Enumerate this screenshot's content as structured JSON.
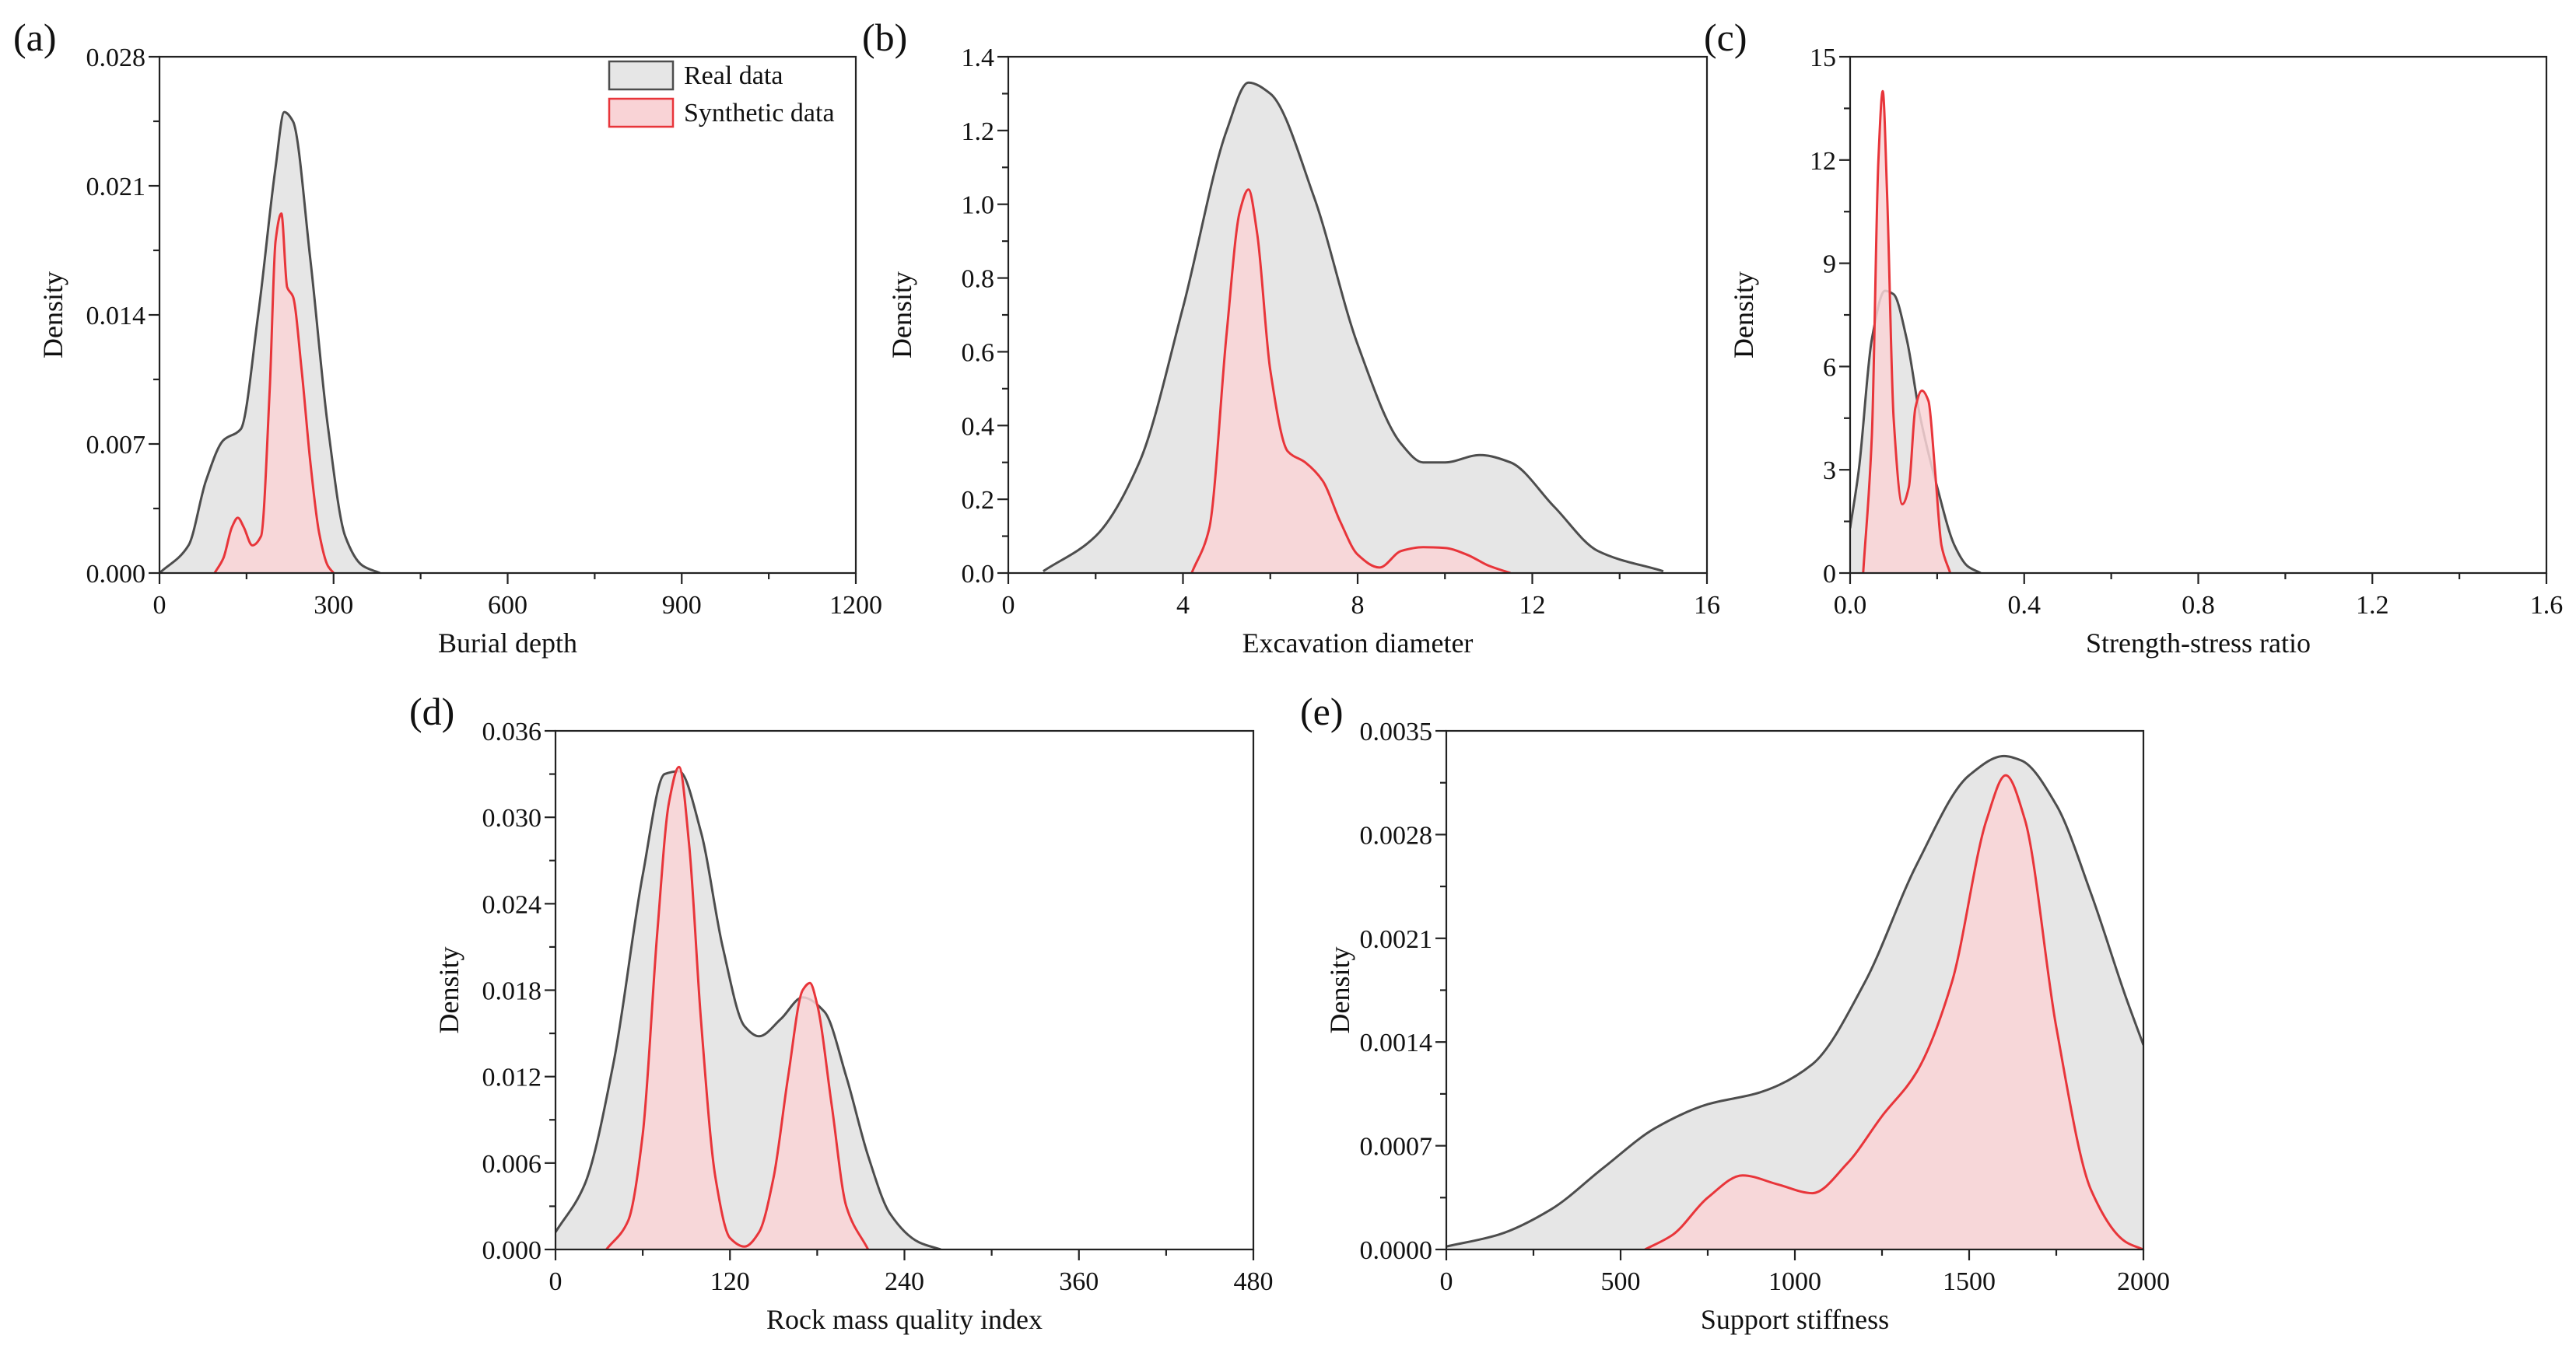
{
  "figure": {
    "legend": {
      "entries": [
        {
          "label": "Real data",
          "stroke": "#4d4d4d",
          "fill": "#e6e6e6"
        },
        {
          "label": "Synthetic data",
          "stroke": "#e8353a",
          "fill": "#f9d3d6"
        }
      ]
    }
  },
  "chart_data": [
    {
      "panel": "(a)",
      "type": "area",
      "xlabel": "Burial depth",
      "ylabel": "Density",
      "xlim": [
        0,
        1200
      ],
      "ylim": [
        0,
        0.028
      ],
      "xticks": [
        "0",
        "300",
        "600",
        "900",
        "1200"
      ],
      "yticks": [
        "0.000",
        "0.007",
        "0.014",
        "0.021",
        "0.028"
      ],
      "series": [
        {
          "name": "Real data",
          "x": [
            0,
            50,
            80,
            110,
            140,
            170,
            200,
            215,
            230,
            260,
            290,
            320,
            350,
            380
          ],
          "values": [
            0.0,
            0.0015,
            0.005,
            0.0072,
            0.0078,
            0.014,
            0.022,
            0.025,
            0.0245,
            0.017,
            0.008,
            0.002,
            0.0004,
            0.0
          ]
        },
        {
          "name": "Synthetic data",
          "x": [
            95,
            110,
            125,
            135,
            145,
            160,
            175,
            190,
            200,
            210,
            220,
            230,
            245,
            260,
            275,
            290,
            300
          ],
          "values": [
            0.0,
            0.0008,
            0.0025,
            0.003,
            0.0025,
            0.0015,
            0.002,
            0.01,
            0.018,
            0.0195,
            0.0155,
            0.015,
            0.011,
            0.006,
            0.0022,
            0.0004,
            0.0
          ]
        }
      ]
    },
    {
      "panel": "(b)",
      "type": "area",
      "xlabel": "Excavation diameter",
      "ylabel": "Density",
      "xlim": [
        0,
        16
      ],
      "ylim": [
        0,
        1.4
      ],
      "xticks": [
        "0",
        "4",
        "8",
        "12",
        "16"
      ],
      "yticks": [
        "0.0",
        "0.2",
        "0.4",
        "0.6",
        "0.8",
        "1.0",
        "1.2",
        "1.4"
      ],
      "series": [
        {
          "name": "Real data",
          "x": [
            0.8,
            2,
            3,
            4,
            5,
            5.5,
            6,
            7,
            8,
            9,
            9.5,
            10,
            10.8,
            11.5,
            12.5,
            13.5,
            15
          ],
          "values": [
            0.005,
            0.1,
            0.3,
            0.72,
            1.2,
            1.33,
            1.3,
            1.02,
            0.62,
            0.35,
            0.3,
            0.3,
            0.32,
            0.3,
            0.18,
            0.06,
            0.005
          ]
        },
        {
          "name": "Synthetic data",
          "x": [
            4.2,
            4.6,
            5.0,
            5.3,
            5.5,
            5.7,
            6.0,
            6.4,
            6.8,
            7.2,
            7.6,
            8.0,
            8.5,
            9.0,
            9.5,
            10.0,
            10.5,
            11.0,
            11.5
          ],
          "values": [
            0.0,
            0.12,
            0.65,
            0.98,
            1.04,
            0.92,
            0.55,
            0.33,
            0.3,
            0.25,
            0.14,
            0.05,
            0.015,
            0.06,
            0.07,
            0.068,
            0.05,
            0.02,
            0.0
          ]
        }
      ]
    },
    {
      "panel": "(c)",
      "type": "area",
      "xlabel": "Strength-stress ratio",
      "ylabel": "Density",
      "xlim": [
        0,
        1.6
      ],
      "ylim": [
        0,
        15
      ],
      "xticks": [
        "0.0",
        "0.4",
        "0.8",
        "1.2",
        "1.6"
      ],
      "yticks": [
        "0",
        "3",
        "6",
        "9",
        "12",
        "15"
      ],
      "series": [
        {
          "name": "Real data",
          "x": [
            0.0,
            0.02,
            0.05,
            0.08,
            0.1,
            0.13,
            0.16,
            0.2,
            0.24,
            0.27,
            0.3
          ],
          "values": [
            1.3,
            3.0,
            6.8,
            8.2,
            8.1,
            6.8,
            4.6,
            2.5,
            0.8,
            0.2,
            0.0
          ]
        },
        {
          "name": "Synthetic data",
          "x": [
            0.03,
            0.05,
            0.065,
            0.075,
            0.085,
            0.1,
            0.12,
            0.135,
            0.15,
            0.165,
            0.18,
            0.195,
            0.21,
            0.23
          ],
          "values": [
            0.0,
            4.0,
            12.0,
            14.0,
            11.0,
            4.5,
            2.0,
            2.5,
            4.8,
            5.3,
            5.0,
            3.0,
            0.8,
            0.0
          ]
        }
      ]
    },
    {
      "panel": "(d)",
      "type": "area",
      "xlabel": "Rock mass quality index",
      "ylabel": "Density",
      "xlim": [
        0,
        480
      ],
      "ylim": [
        0,
        0.036
      ],
      "xticks": [
        "0",
        "120",
        "240",
        "360",
        "480"
      ],
      "yticks": [
        "0.000",
        "0.006",
        "0.012",
        "0.018",
        "0.024",
        "0.030",
        "0.036"
      ],
      "series": [
        {
          "name": "Real data",
          "x": [
            0,
            20,
            40,
            60,
            75,
            85,
            100,
            115,
            130,
            140,
            155,
            170,
            185,
            200,
            215,
            230,
            250,
            265
          ],
          "values": [
            0.0012,
            0.0045,
            0.013,
            0.026,
            0.033,
            0.0332,
            0.029,
            0.021,
            0.0155,
            0.0148,
            0.016,
            0.0175,
            0.0165,
            0.012,
            0.0065,
            0.0025,
            0.0005,
            0.0
          ]
        },
        {
          "name": "Synthetic data",
          "x": [
            35,
            50,
            60,
            70,
            78,
            85,
            92,
            100,
            110,
            120,
            130,
            140,
            150,
            160,
            170,
            175,
            180,
            190,
            200,
            215
          ],
          "values": [
            0.0,
            0.002,
            0.008,
            0.022,
            0.031,
            0.0335,
            0.028,
            0.016,
            0.005,
            0.0008,
            0.0002,
            0.0012,
            0.005,
            0.012,
            0.018,
            0.0185,
            0.017,
            0.01,
            0.003,
            0.0
          ]
        }
      ]
    },
    {
      "panel": "(e)",
      "type": "area",
      "xlabel": "Support stiffness",
      "ylabel": "Density",
      "xlim": [
        0,
        2000
      ],
      "ylim": [
        0,
        0.0035
      ],
      "xticks": [
        "0",
        "500",
        "1000",
        "1500",
        "2000"
      ],
      "yticks": [
        "0.0000",
        "0.0007",
        "0.0014",
        "0.0021",
        "0.0028",
        "0.0035"
      ],
      "series": [
        {
          "name": "Real data",
          "x": [
            0,
            150,
            300,
            450,
            600,
            750,
            900,
            1050,
            1200,
            1350,
            1500,
            1600,
            1650,
            1750,
            1850,
            1950,
            2000
          ],
          "values": [
            2e-05,
            0.0001,
            0.00027,
            0.00055,
            0.00082,
            0.00098,
            0.00106,
            0.00125,
            0.0018,
            0.0026,
            0.0032,
            0.00333,
            0.0033,
            0.003,
            0.0024,
            0.0017,
            0.00138
          ]
        },
        {
          "name": "Synthetic data",
          "x": [
            570,
            650,
            750,
            850,
            950,
            1050,
            1150,
            1250,
            1350,
            1450,
            1550,
            1605,
            1660,
            1750,
            1850,
            1950,
            2000
          ],
          "values": [
            0.0,
            0.0001,
            0.00035,
            0.0005,
            0.00044,
            0.00038,
            0.00058,
            0.0009,
            0.0012,
            0.0018,
            0.0029,
            0.0032,
            0.0029,
            0.0015,
            0.0004,
            5e-05,
            0.0
          ]
        }
      ]
    }
  ]
}
